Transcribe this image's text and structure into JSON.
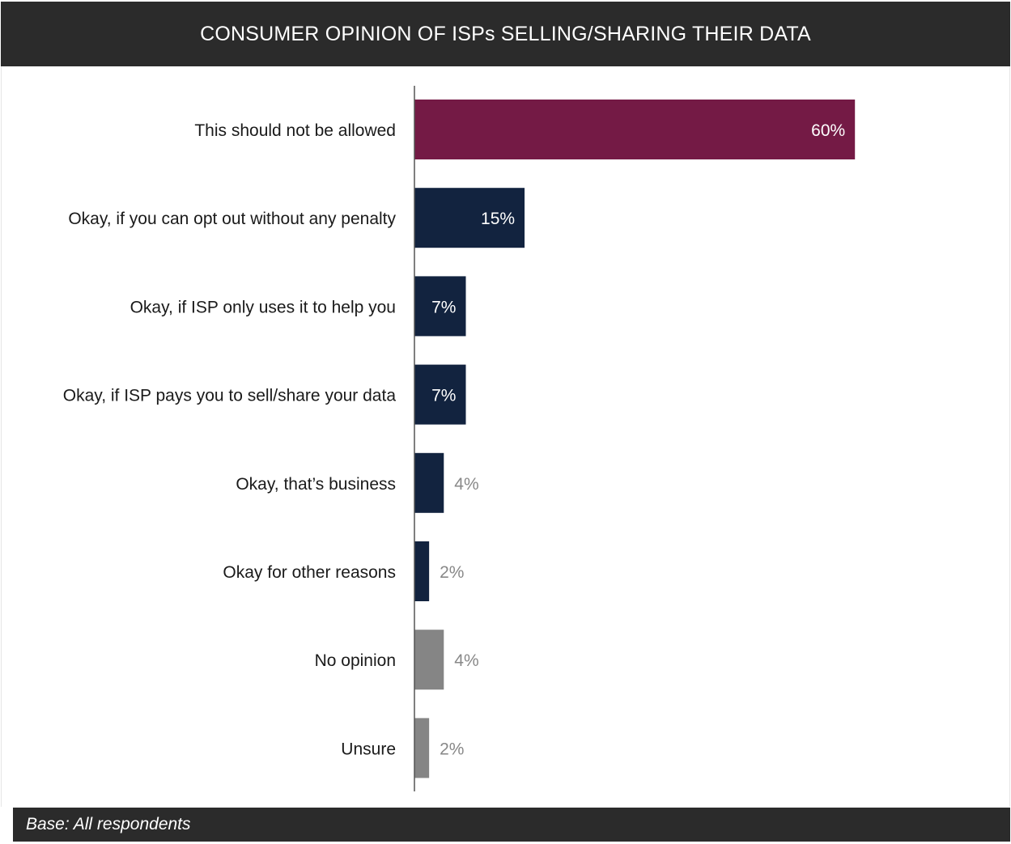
{
  "header": {
    "title": "CONSUMER OPINION OF ISPs SELLING/SHARING THEIR DATA"
  },
  "footer": {
    "base_note": "Base: All respondents"
  },
  "colors": {
    "highlight": "#741a45",
    "primary": "#12233f",
    "neutral": "#858585",
    "label_inside": "#ffffff",
    "label_outside": "#888888",
    "category_text": "#1a1a1a",
    "axis": "#555555"
  },
  "chart_data": {
    "type": "bar",
    "orientation": "horizontal",
    "title": "CONSUMER OPINION OF ISPs SELLING/SHARING THEIR DATA",
    "xlabel": "",
    "ylabel": "",
    "xlim": [
      0,
      100
    ],
    "grid": false,
    "legend": "none",
    "categories": [
      "This should not be allowed",
      "Okay, if you can opt out without any penalty",
      "Okay, if ISP only uses it to help you",
      "Okay, if ISP pays you to sell/share your data",
      "Okay, that’s business",
      "Okay for other reasons",
      "No opinion",
      "Unsure"
    ],
    "values": [
      60,
      15,
      7,
      7,
      4,
      2,
      4,
      2
    ],
    "value_labels": [
      "60%",
      "15%",
      "7%",
      "7%",
      "4%",
      "2%",
      "4%",
      "2%"
    ],
    "bar_colors": [
      "highlight",
      "primary",
      "primary",
      "primary",
      "primary",
      "primary",
      "neutral",
      "neutral"
    ],
    "label_position": [
      "inside",
      "inside",
      "inside",
      "inside",
      "outside",
      "outside",
      "outside",
      "outside"
    ]
  }
}
